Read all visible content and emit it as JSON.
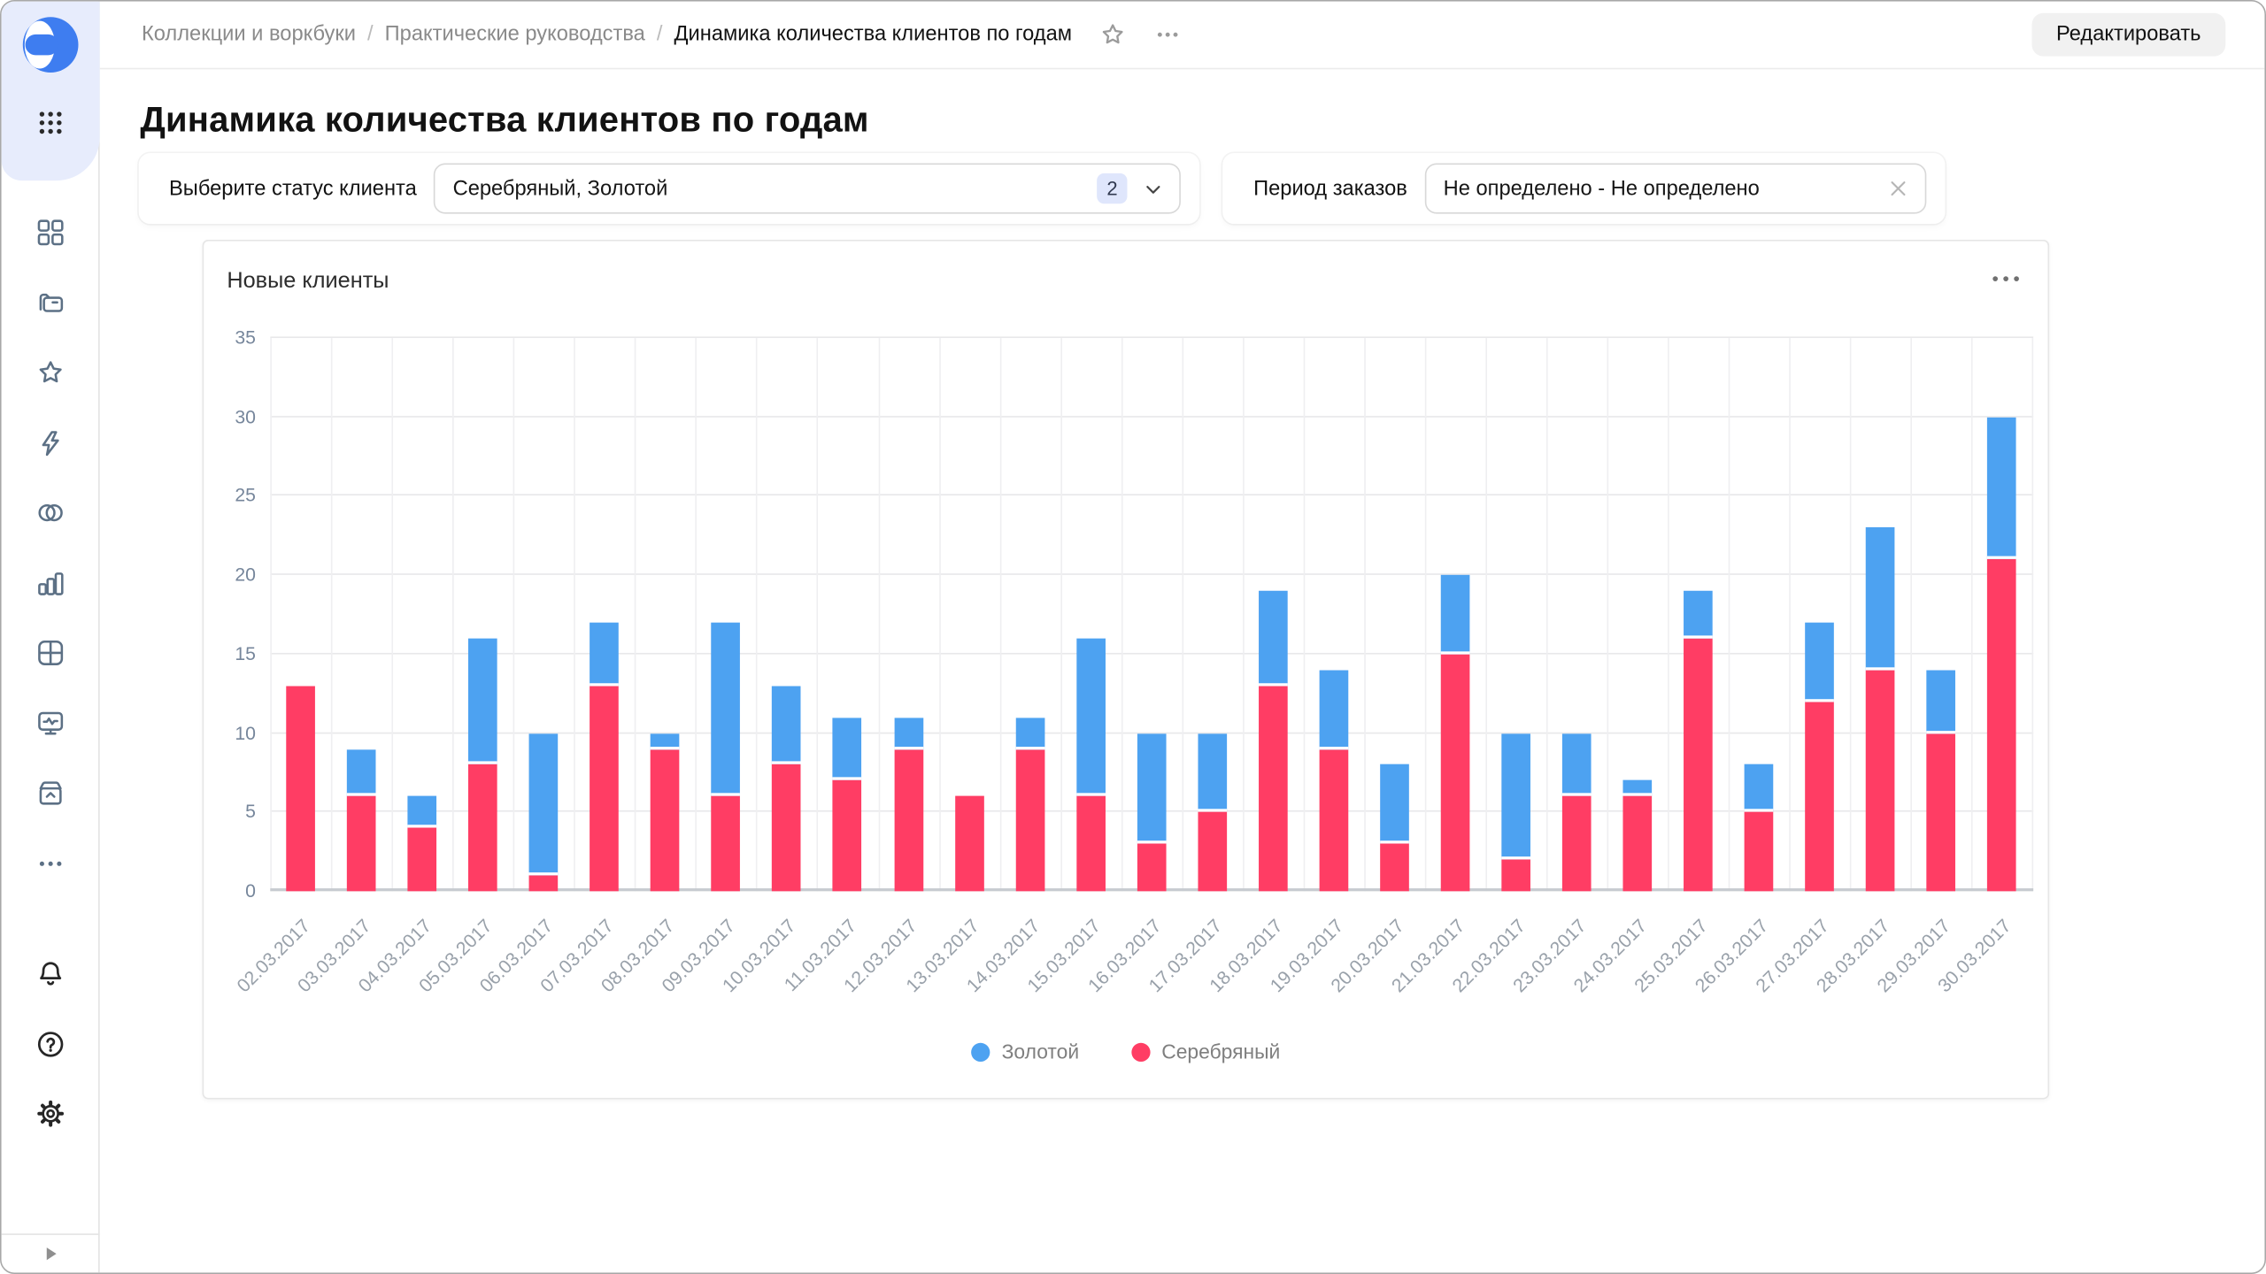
{
  "header": {
    "breadcrumb": [
      "Коллекции и воркбуки",
      "Практические руководства",
      "Динамика количества клиентов по годам"
    ],
    "separator": "/",
    "edit_button": "Редактировать"
  },
  "sidebar": {
    "logo": "datalens-logo",
    "apps_grid": "apps-grid-icon",
    "nav_items": [
      "navigation",
      "collections",
      "favorites",
      "connections",
      "datasets",
      "charts",
      "dashboards",
      "monitoring",
      "storage",
      "more"
    ],
    "footer_items": [
      "notifications",
      "help",
      "settings"
    ],
    "collapse": "expand-panel"
  },
  "page": {
    "title": "Динамика количества клиентов по годам"
  },
  "filters": {
    "status": {
      "label": "Выберите статус клиента",
      "value": "Серебряный, Золотой",
      "count": "2"
    },
    "period": {
      "label": "Период заказов",
      "value": "Не определено - Не определено"
    }
  },
  "widget": {
    "title": "Новые клиенты"
  },
  "chart_data": {
    "type": "bar",
    "stacked": true,
    "title": "Новые клиенты",
    "categories": [
      "02.03.2017",
      "03.03.2017",
      "04.03.2017",
      "05.03.2017",
      "06.03.2017",
      "07.03.2017",
      "08.03.2017",
      "09.03.2017",
      "10.03.2017",
      "11.03.2017",
      "12.03.2017",
      "13.03.2017",
      "14.03.2017",
      "15.03.2017",
      "16.03.2017",
      "17.03.2017",
      "18.03.2017",
      "19.03.2017",
      "20.03.2017",
      "21.03.2017",
      "22.03.2017",
      "23.03.2017",
      "24.03.2017",
      "25.03.2017",
      "26.03.2017",
      "27.03.2017",
      "28.03.2017",
      "29.03.2017",
      "30.03.2017"
    ],
    "series": [
      {
        "name": "Золотой",
        "color": "#4da2f1",
        "values": [
          0,
          3,
          2,
          8,
          9,
          4,
          1,
          11,
          5,
          4,
          2,
          0,
          2,
          10,
          7,
          5,
          6,
          5,
          5,
          5,
          8,
          4,
          1,
          3,
          3,
          5,
          9,
          4,
          9
        ]
      },
      {
        "name": "Серебряный",
        "color": "#ff3d64",
        "values": [
          13,
          6,
          4,
          8,
          1,
          13,
          9,
          6,
          8,
          7,
          9,
          6,
          9,
          6,
          3,
          5,
          13,
          9,
          3,
          15,
          2,
          6,
          6,
          16,
          5,
          12,
          14,
          10,
          21
        ]
      }
    ],
    "stack_bottom_to_top": [
      "Серебряный",
      "Золотой"
    ],
    "xlabel": "",
    "ylabel": "",
    "ylim": [
      0,
      35
    ],
    "yticks": [
      0,
      5,
      10,
      15,
      20,
      25,
      30,
      35
    ],
    "grid": true,
    "legend_position": "bottom"
  },
  "colors": {
    "gold_series": "#4da2f1",
    "silver_series": "#ff3d64",
    "accent": "#3e7df0"
  }
}
